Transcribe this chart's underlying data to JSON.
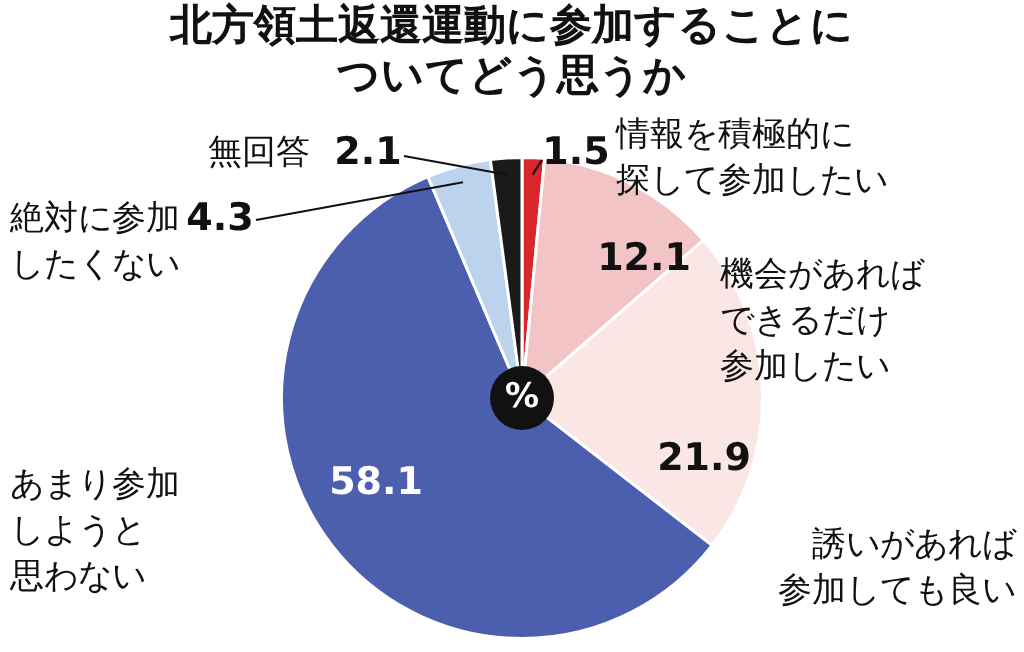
{
  "chart_data": {
    "type": "pie",
    "title": "北方領土返還運動に参加することについてどう思うか",
    "categories": [
      "情報を積極的に探して参加したい",
      "機会があればできるだけ参加したい",
      "誘いがあれば参加しても良い",
      "あまり参加しようと思わない",
      "絶対に参加したくない",
      "無回答"
    ],
    "values": [
      1.5,
      12.1,
      21.9,
      58.1,
      4.3,
      2.1
    ],
    "colors": [
      "#d8262b",
      "#f2c4c6",
      "#fbe6e6",
      "#4b5fae",
      "#bcd3ee",
      "#1a1a1a"
    ],
    "data_labels": true,
    "legend": false,
    "annotations": [
      "%"
    ]
  }
}
